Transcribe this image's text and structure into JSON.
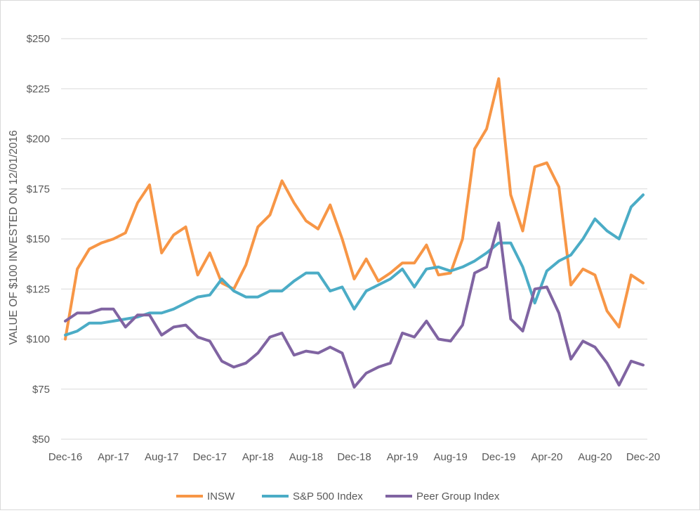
{
  "chart_data": {
    "type": "line",
    "ylabel": "VALUE OF $100 INVESTED ON 12/01/2016",
    "xlabel": "",
    "ylim": [
      50,
      250
    ],
    "y_ticks": [
      50,
      75,
      100,
      125,
      150,
      175,
      200,
      225,
      250
    ],
    "y_tick_labels": [
      "$50",
      "$75",
      "$100",
      "$125",
      "$150",
      "$175",
      "$200",
      "$225",
      "$250"
    ],
    "x_tick_labels": [
      "Dec-16",
      "Apr-17",
      "Aug-17",
      "Dec-17",
      "Apr-18",
      "Aug-18",
      "Dec-18",
      "Apr-19",
      "Aug-19",
      "Dec-19",
      "Apr-20",
      "Aug-20",
      "Dec-20"
    ],
    "x_tick_every": 4,
    "grid": true,
    "legend_position": "bottom",
    "series": [
      {
        "name": "INSW",
        "color": "#F79646",
        "values": [
          100,
          135,
          145,
          148,
          150,
          153,
          168,
          177,
          143,
          152,
          156,
          132,
          143,
          128,
          125,
          137,
          156,
          162,
          179,
          168,
          159,
          155,
          167,
          150,
          130,
          140,
          129,
          133,
          138,
          138,
          147,
          132,
          133,
          150,
          195,
          205,
          230,
          172,
          154,
          186,
          188,
          176,
          127,
          135,
          132,
          114,
          106,
          132,
          128
        ]
      },
      {
        "name": "S&P 500 Index",
        "color": "#4BACC6",
        "values": [
          102,
          104,
          108,
          108,
          109,
          110,
          111,
          113,
          113,
          115,
          118,
          121,
          122,
          130,
          124,
          121,
          121,
          124,
          124,
          129,
          133,
          133,
          124,
          126,
          115,
          124,
          127,
          130,
          135,
          126,
          135,
          136,
          134,
          136,
          139,
          143,
          148,
          148,
          136,
          118,
          134,
          139,
          142,
          150,
          160,
          154,
          150,
          166,
          172
        ]
      },
      {
        "name": "Peer Group Index",
        "color": "#8064A2",
        "values": [
          109,
          113,
          113,
          115,
          115,
          106,
          112,
          112,
          102,
          106,
          107,
          101,
          99,
          89,
          86,
          88,
          93,
          101,
          103,
          92,
          94,
          93,
          96,
          93,
          76,
          83,
          86,
          88,
          103,
          101,
          109,
          100,
          99,
          107,
          133,
          136,
          158,
          110,
          104,
          125,
          126,
          113,
          90,
          99,
          96,
          88,
          77,
          89,
          87
        ]
      }
    ]
  }
}
